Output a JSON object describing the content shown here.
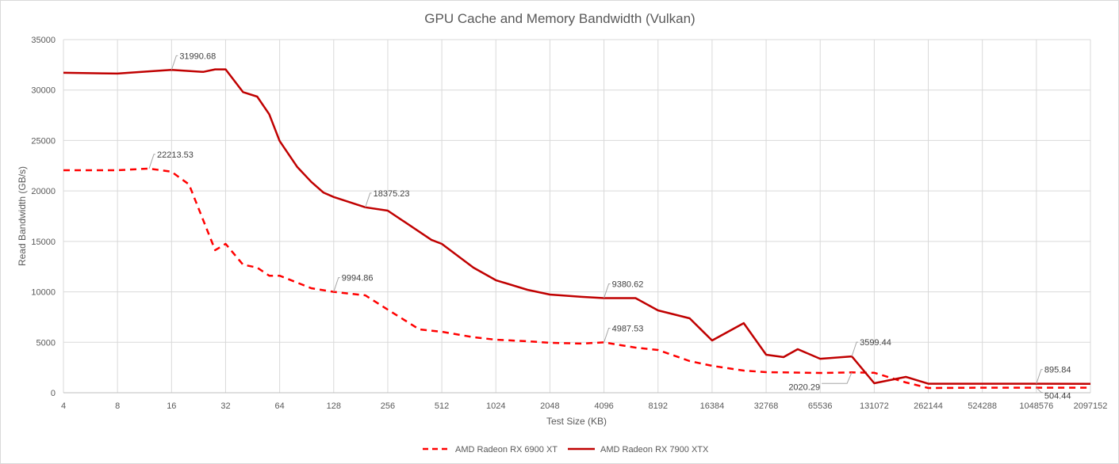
{
  "chart_data": {
    "type": "line",
    "title": "GPU Cache and Memory Bandwidth (Vulkan)",
    "xlabel": "Test Size (KB)",
    "ylabel": "Read Bandwidth (GB/s)",
    "x_scale": "log2",
    "ylim": [
      0,
      35000
    ],
    "yticks": [
      "0",
      "5000",
      "10000",
      "15000",
      "20000",
      "25000",
      "30000",
      "35000"
    ],
    "xticks": [
      "4",
      "8",
      "16",
      "32",
      "64",
      "128",
      "256",
      "512",
      "1024",
      "2048",
      "4096",
      "8192",
      "16384",
      "32768",
      "65536",
      "131072",
      "262144",
      "524288",
      "1048576",
      "2097152"
    ],
    "grid": true,
    "legend": "bottom",
    "series": [
      {
        "name": "AMD Radeon RX 6900 XT",
        "color": "#ff0000",
        "style": "dashed",
        "x": [
          4,
          8,
          12,
          16,
          20,
          28,
          32,
          40,
          48,
          56,
          64,
          96,
          128,
          192,
          256,
          384,
          512,
          768,
          1024,
          1536,
          2048,
          3072,
          4096,
          6144,
          8192,
          12288,
          16384,
          24576,
          32768,
          65536,
          98304,
          131072,
          196608,
          262144,
          524288,
          1048576,
          2097152
        ],
        "y": [
          22050,
          22050,
          22213.53,
          21900,
          20650,
          14130,
          14750,
          12700,
          12400,
          11600,
          11600,
          10360,
          9994.86,
          9650,
          8240,
          6280,
          6040,
          5500,
          5260,
          5100,
          4950,
          4870,
          4987.53,
          4470,
          4240,
          3140,
          2670,
          2200,
          2040,
          1960,
          2020.29,
          1980,
          1020,
          470,
          504,
          504.44,
          504
        ],
        "labels": [
          {
            "index": 2,
            "text": "22213.53"
          },
          {
            "index": 12,
            "text": "9994.86"
          },
          {
            "index": 22,
            "text": "4987.53"
          },
          {
            "index": 30,
            "text": "2020.29"
          },
          {
            "index": 35,
            "text": "504.44"
          }
        ]
      },
      {
        "name": "AMD Radeon RX 7900 XTX",
        "color": "#c00000",
        "style": "solid",
        "x": [
          4,
          8,
          12,
          16,
          24,
          28,
          32,
          40,
          48,
          56,
          64,
          80,
          96,
          112,
          128,
          192,
          256,
          448,
          512,
          768,
          1024,
          1536,
          2048,
          3072,
          4096,
          6144,
          8192,
          12288,
          16384,
          24576,
          32768,
          40960,
          49152,
          65536,
          98304,
          131072,
          196608,
          262144,
          524288,
          1048576,
          2097152
        ],
        "y": [
          31710,
          31630,
          31850,
          31990.68,
          31800,
          32050,
          32050,
          29800,
          29350,
          27600,
          24950,
          22400,
          20900,
          19850,
          19400,
          18375.23,
          18050,
          15150,
          14750,
          12400,
          11150,
          10200,
          9730,
          9500,
          9380.62,
          9380,
          8160,
          7380,
          5180,
          6900,
          3770,
          3530,
          4320,
          3370,
          3599.44,
          940,
          1570,
          895,
          895,
          895.84,
          880
        ],
        "labels": [
          {
            "index": 3,
            "text": "31990.68"
          },
          {
            "index": 15,
            "text": "18375.23"
          },
          {
            "index": 24,
            "text": "9380.62"
          },
          {
            "index": 34,
            "text": "3599.44"
          },
          {
            "index": 39,
            "text": "895.84"
          }
        ]
      }
    ]
  }
}
